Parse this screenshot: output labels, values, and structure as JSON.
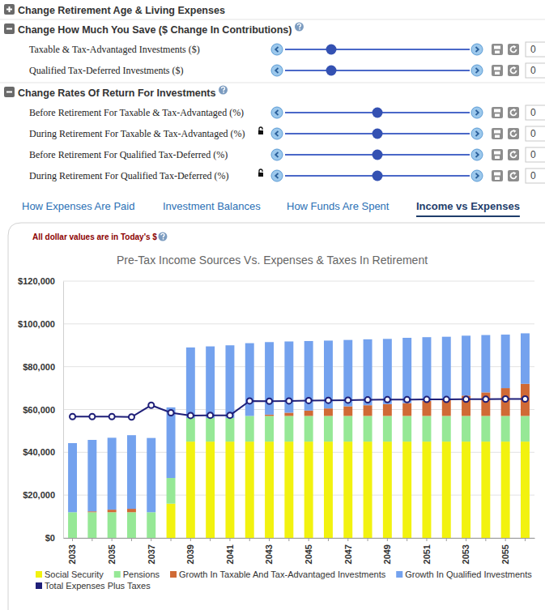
{
  "controls": {
    "panels": [
      {
        "label": "Change Retirement Age & Living Expenses",
        "expanded": false
      },
      {
        "label": "Change How Much You Save ($ Change In Contributions)",
        "expanded": true,
        "help": true,
        "rows": [
          {
            "label": "Taxable & Tax-Advantaged Investments ($)",
            "value": 0
          },
          {
            "label": "Qualified Tax-Deferred Investments ($)",
            "value": 0
          }
        ]
      },
      {
        "label": "Change Rates Of Return For Investments",
        "expanded": true,
        "help": true,
        "rows": [
          {
            "label": "Before Retirement For Taxable & Tax-Advantaged (%)",
            "value": 0
          },
          {
            "label": "During Retirement For Taxable & Tax-Advantaged (%)",
            "value": 0,
            "locked": true
          },
          {
            "label": "Before Retirement For Qualified Tax-Deferred (%)",
            "value": 0
          },
          {
            "label": "During Retirement For Qualified Tax-Deferred (%)",
            "value": 0,
            "locked": true
          }
        ]
      }
    ]
  },
  "tabs": [
    {
      "label": "How Expenses Are Paid"
    },
    {
      "label": "Investment Balances"
    },
    {
      "label": "How Funds Are Spent"
    },
    {
      "label": "Income vs Expenses",
      "active": true
    }
  ],
  "chart_data": {
    "type": "bar",
    "title": "Pre-Tax Income Sources Vs. Expenses & Taxes In Retirement",
    "annotations": [
      "All dollar values are in Today's $"
    ],
    "stacked": true,
    "grid": true,
    "legend": "bottom",
    "categories": [
      "2033",
      null,
      "2035",
      null,
      "2037",
      null,
      "2039",
      null,
      "2041",
      null,
      "2043",
      null,
      "2045",
      null,
      "2047",
      null,
      "2049",
      null,
      "2051",
      null,
      "2053",
      null,
      "2055",
      null
    ],
    "ylim": [
      0,
      120000
    ],
    "yticks": [
      {
        "value": 0,
        "label": "$0"
      },
      {
        "value": 20000,
        "label": "$20,000"
      },
      {
        "value": 40000,
        "label": "$40,000"
      },
      {
        "value": 60000,
        "label": "$60,000"
      },
      {
        "value": 80000,
        "label": "$80,000"
      },
      {
        "value": 100000,
        "label": "$100,000"
      },
      {
        "value": 120000,
        "label": "$120,000"
      }
    ],
    "series": [
      {
        "name": "Social Security",
        "color": "#f2f20f",
        "type": "bar",
        "values": [
          0,
          0,
          0,
          0,
          0,
          16000,
          45000,
          45000,
          45000,
          45000,
          45000,
          45000,
          45000,
          45000,
          45000,
          45000,
          45000,
          45000,
          45000,
          45000,
          45000,
          45000,
          45000,
          45000
        ]
      },
      {
        "name": "Pensions",
        "color": "#96e896",
        "type": "bar",
        "values": [
          12000,
          12000,
          12000,
          12000,
          12000,
          12000,
          11000,
          11000,
          11000,
          12000,
          12000,
          12000,
          12000,
          12000,
          12000,
          12000,
          12000,
          12000,
          12000,
          12000,
          12000,
          12000,
          12000,
          12000
        ]
      },
      {
        "name": "Growth In Taxable And Tax-Advantaged Investments",
        "color": "#d06a35",
        "type": "bar",
        "values": [
          0,
          400,
          1200,
          1600,
          0,
          0,
          0,
          0,
          0,
          0,
          600,
          1500,
          2500,
          3500,
          4500,
          5000,
          5500,
          6000,
          7000,
          8000,
          9500,
          11000,
          13000,
          15000
        ]
      },
      {
        "name": "Growth In Qualified Investments",
        "color": "#74a2ee",
        "type": "bar",
        "values": [
          32300,
          33400,
          33600,
          34400,
          34700,
          33000,
          33000,
          33500,
          34000,
          34000,
          33900,
          33300,
          32500,
          31700,
          31000,
          30800,
          30500,
          30500,
          29800,
          29000,
          28000,
          26800,
          25000,
          23600
        ]
      },
      {
        "name": "Total Expenses Plus Taxes",
        "color": "#1f1f78",
        "type": "line",
        "marker": "circle",
        "values": [
          56700,
          56700,
          56700,
          56500,
          62000,
          58500,
          57200,
          57300,
          57300,
          64000,
          63900,
          64000,
          64200,
          64300,
          64400,
          64500,
          64600,
          64600,
          64700,
          64700,
          64800,
          64800,
          64900,
          64900
        ]
      }
    ]
  }
}
